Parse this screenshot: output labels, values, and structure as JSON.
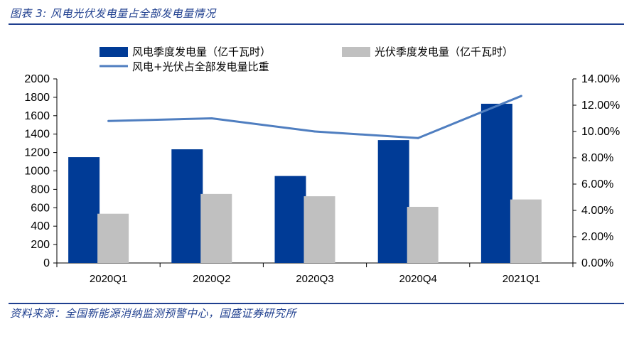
{
  "figure": {
    "caption": "图表 3: 风电光伏发电量占全部发电量情况",
    "source": "资料来源：全国新能源消纳监测预警中心，国盛证券研究所"
  },
  "colors": {
    "wind": "#003b96",
    "solar": "#c0c0c0",
    "share": "#4f7ec0",
    "rule": "#1f3f8f"
  },
  "chart_data": {
    "type": "bar",
    "categories": [
      "2020Q1",
      "2020Q2",
      "2020Q3",
      "2020Q4",
      "2021Q1"
    ],
    "series": [
      {
        "name": "风电季度发电量（亿千瓦时）",
        "type": "bar",
        "axis": "left",
        "values": [
          1150,
          1235,
          945,
          1335,
          1730
        ]
      },
      {
        "name": "光伏季度发电量（亿千瓦时）",
        "type": "bar",
        "axis": "left",
        "values": [
          535,
          750,
          725,
          610,
          690
        ]
      },
      {
        "name": "风电+光伏占全部发电量比重",
        "type": "line",
        "axis": "right",
        "values": [
          10.8,
          11.0,
          10.0,
          9.5,
          12.7
        ]
      }
    ],
    "y_left": {
      "min": 0,
      "max": 2000,
      "step": 200,
      "ticks": [
        "0",
        "200",
        "400",
        "600",
        "800",
        "1000",
        "1200",
        "1400",
        "1600",
        "1800",
        "2000"
      ]
    },
    "y_right": {
      "min": 0,
      "max": 14,
      "step": 2,
      "ticks": [
        "0.00%",
        "2.00%",
        "4.00%",
        "6.00%",
        "8.00%",
        "10.00%",
        "12.00%",
        "14.00%"
      ]
    },
    "legend_position": "top",
    "grid": false
  }
}
